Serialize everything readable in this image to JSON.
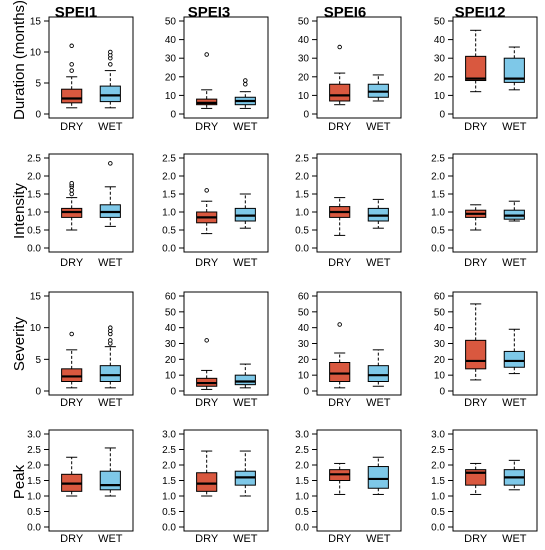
{
  "colors": {
    "dry": "#d9583f",
    "wet": "#7ec8e8",
    "axis": "#000000"
  },
  "figure": {
    "column_titles": [
      "SPEI1",
      "SPEI3",
      "SPEI6",
      "SPEI12"
    ],
    "row_labels": [
      "Duration (months)",
      "Intensity",
      "Severity",
      "Peak"
    ]
  },
  "chart_data": [
    {
      "type": "boxplot",
      "title": "SPEI1",
      "ylabel": "Duration (months)",
      "ylim": [
        0,
        15
      ],
      "yticks": [
        0,
        5,
        10,
        15
      ],
      "categories": [
        "DRY",
        "WET"
      ],
      "boxes": [
        {
          "name": "DRY",
          "whisker_low": 1,
          "q1": 1.8,
          "median": 2.5,
          "q3": 4,
          "whisker_high": 6,
          "outliers": [
            7,
            8,
            11
          ]
        },
        {
          "name": "WET",
          "whisker_low": 1,
          "q1": 2,
          "median": 3,
          "q3": 4.5,
          "whisker_high": 7,
          "outliers": [
            8,
            9,
            9.5,
            10
          ]
        }
      ]
    },
    {
      "type": "boxplot",
      "title": "SPEI3",
      "ylabel": "",
      "ylim": [
        0,
        50
      ],
      "yticks": [
        0,
        10,
        20,
        30,
        40,
        50
      ],
      "categories": [
        "DRY",
        "WET"
      ],
      "boxes": [
        {
          "name": "DRY",
          "whisker_low": 3,
          "q1": 5,
          "median": 6,
          "q3": 8,
          "whisker_high": 13,
          "outliers": [
            32
          ]
        },
        {
          "name": "WET",
          "whisker_low": 3,
          "q1": 5,
          "median": 7,
          "q3": 9,
          "whisker_high": 12,
          "outliers": [
            16,
            18
          ]
        }
      ]
    },
    {
      "type": "boxplot",
      "title": "SPEI6",
      "ylabel": "",
      "ylim": [
        0,
        50
      ],
      "yticks": [
        0,
        10,
        20,
        30,
        40,
        50
      ],
      "categories": [
        "DRY",
        "WET"
      ],
      "boxes": [
        {
          "name": "DRY",
          "whisker_low": 5,
          "q1": 7,
          "median": 10,
          "q3": 16,
          "whisker_high": 22,
          "outliers": [
            36
          ]
        },
        {
          "name": "WET",
          "whisker_low": 7,
          "q1": 9,
          "median": 12,
          "q3": 16,
          "whisker_high": 21,
          "outliers": []
        }
      ]
    },
    {
      "type": "boxplot",
      "title": "SPEI12",
      "ylabel": "",
      "ylim": [
        0,
        50
      ],
      "yticks": [
        0,
        10,
        20,
        30,
        40,
        50
      ],
      "categories": [
        "DRY",
        "WET"
      ],
      "boxes": [
        {
          "name": "DRY",
          "whisker_low": 12,
          "q1": 18,
          "median": 19,
          "q3": 31,
          "whisker_high": 45,
          "outliers": []
        },
        {
          "name": "WET",
          "whisker_low": 13,
          "q1": 17,
          "median": 19,
          "q3": 30,
          "whisker_high": 36,
          "outliers": []
        }
      ]
    },
    {
      "type": "boxplot",
      "title": "",
      "ylabel": "Intensity",
      "ylim": [
        0,
        2.5
      ],
      "yticks": [
        0.0,
        0.5,
        1.0,
        1.5,
        2.0,
        2.5
      ],
      "categories": [
        "DRY",
        "WET"
      ],
      "boxes": [
        {
          "name": "DRY",
          "whisker_low": 0.5,
          "q1": 0.85,
          "median": 1.0,
          "q3": 1.1,
          "whisker_high": 1.4,
          "outliers": [
            1.5,
            1.6,
            1.7,
            1.75,
            1.8
          ]
        },
        {
          "name": "WET",
          "whisker_low": 0.6,
          "q1": 0.85,
          "median": 1.0,
          "q3": 1.2,
          "whisker_high": 1.7,
          "outliers": [
            2.35
          ]
        }
      ]
    },
    {
      "type": "boxplot",
      "title": "",
      "ylabel": "",
      "ylim": [
        0,
        2.5
      ],
      "yticks": [
        0.0,
        0.5,
        1.0,
        1.5,
        2.0,
        2.5
      ],
      "categories": [
        "DRY",
        "WET"
      ],
      "boxes": [
        {
          "name": "DRY",
          "whisker_low": 0.4,
          "q1": 0.7,
          "median": 0.85,
          "q3": 1.0,
          "whisker_high": 1.3,
          "outliers": [
            1.6
          ]
        },
        {
          "name": "WET",
          "whisker_low": 0.55,
          "q1": 0.75,
          "median": 0.9,
          "q3": 1.1,
          "whisker_high": 1.5,
          "outliers": []
        }
      ]
    },
    {
      "type": "boxplot",
      "title": "",
      "ylabel": "",
      "ylim": [
        0,
        2.5
      ],
      "yticks": [
        0.0,
        0.5,
        1.0,
        1.5,
        2.0,
        2.5
      ],
      "categories": [
        "DRY",
        "WET"
      ],
      "boxes": [
        {
          "name": "DRY",
          "whisker_low": 0.35,
          "q1": 0.85,
          "median": 1.0,
          "q3": 1.15,
          "whisker_high": 1.4,
          "outliers": []
        },
        {
          "name": "WET",
          "whisker_low": 0.55,
          "q1": 0.75,
          "median": 0.9,
          "q3": 1.1,
          "whisker_high": 1.35,
          "outliers": []
        }
      ]
    },
    {
      "type": "boxplot",
      "title": "",
      "ylabel": "",
      "ylim": [
        0,
        2.5
      ],
      "yticks": [
        0.0,
        0.5,
        1.0,
        1.5,
        2.0,
        2.5
      ],
      "categories": [
        "DRY",
        "WET"
      ],
      "boxes": [
        {
          "name": "DRY",
          "whisker_low": 0.5,
          "q1": 0.85,
          "median": 0.95,
          "q3": 1.05,
          "whisker_high": 1.2,
          "outliers": []
        },
        {
          "name": "WET",
          "whisker_low": 0.75,
          "q1": 0.8,
          "median": 0.9,
          "q3": 1.05,
          "whisker_high": 1.3,
          "outliers": []
        }
      ]
    },
    {
      "type": "boxplot",
      "title": "",
      "ylabel": "Severity",
      "ylim": [
        0,
        15
      ],
      "yticks": [
        0,
        5,
        10,
        15
      ],
      "categories": [
        "DRY",
        "WET"
      ],
      "boxes": [
        {
          "name": "DRY",
          "whisker_low": 0.5,
          "q1": 1.5,
          "median": 2.3,
          "q3": 3.5,
          "whisker_high": 6.5,
          "outliers": [
            9
          ]
        },
        {
          "name": "WET",
          "whisker_low": 0.5,
          "q1": 1.5,
          "median": 2.5,
          "q3": 4,
          "whisker_high": 7,
          "outliers": [
            7.5,
            8,
            9,
            9.5,
            10
          ]
        }
      ]
    },
    {
      "type": "boxplot",
      "title": "",
      "ylabel": "",
      "ylim": [
        0,
        60
      ],
      "yticks": [
        0,
        10,
        20,
        30,
        40,
        50,
        60
      ],
      "categories": [
        "DRY",
        "WET"
      ],
      "boxes": [
        {
          "name": "DRY",
          "whisker_low": 1,
          "q1": 3,
          "median": 5,
          "q3": 8,
          "whisker_high": 13,
          "outliers": [
            32
          ]
        },
        {
          "name": "WET",
          "whisker_low": 2,
          "q1": 4,
          "median": 6,
          "q3": 10,
          "whisker_high": 17,
          "outliers": []
        }
      ]
    },
    {
      "type": "boxplot",
      "title": "",
      "ylabel": "",
      "ylim": [
        0,
        60
      ],
      "yticks": [
        0,
        10,
        20,
        30,
        40,
        50,
        60
      ],
      "categories": [
        "DRY",
        "WET"
      ],
      "boxes": [
        {
          "name": "DRY",
          "whisker_low": 2,
          "q1": 6,
          "median": 11,
          "q3": 18,
          "whisker_high": 24,
          "outliers": [
            42
          ]
        },
        {
          "name": "WET",
          "whisker_low": 3,
          "q1": 6,
          "median": 10,
          "q3": 16,
          "whisker_high": 26,
          "outliers": []
        }
      ]
    },
    {
      "type": "boxplot",
      "title": "",
      "ylabel": "",
      "ylim": [
        0,
        60
      ],
      "yticks": [
        0,
        10,
        20,
        30,
        40,
        50,
        60
      ],
      "categories": [
        "DRY",
        "WET"
      ],
      "boxes": [
        {
          "name": "DRY",
          "whisker_low": 7,
          "q1": 14,
          "median": 19,
          "q3": 32,
          "whisker_high": 55,
          "outliers": []
        },
        {
          "name": "WET",
          "whisker_low": 11,
          "q1": 15,
          "median": 19,
          "q3": 25,
          "whisker_high": 39,
          "outliers": []
        }
      ]
    },
    {
      "type": "boxplot",
      "title": "",
      "ylabel": "Peak",
      "ylim": [
        0,
        3.0
      ],
      "yticks": [
        0.0,
        0.5,
        1.0,
        1.5,
        2.0,
        2.5,
        3.0
      ],
      "categories": [
        "DRY",
        "WET"
      ],
      "boxes": [
        {
          "name": "DRY",
          "whisker_low": 1.0,
          "q1": 1.15,
          "median": 1.4,
          "q3": 1.7,
          "whisker_high": 2.25,
          "outliers": []
        },
        {
          "name": "WET",
          "whisker_low": 1.0,
          "q1": 1.2,
          "median": 1.35,
          "q3": 1.8,
          "whisker_high": 2.55,
          "outliers": []
        }
      ]
    },
    {
      "type": "boxplot",
      "title": "",
      "ylabel": "",
      "ylim": [
        0,
        3.0
      ],
      "yticks": [
        0.0,
        0.5,
        1.0,
        1.5,
        2.0,
        2.5,
        3.0
      ],
      "categories": [
        "DRY",
        "WET"
      ],
      "boxes": [
        {
          "name": "DRY",
          "whisker_low": 1.0,
          "q1": 1.15,
          "median": 1.4,
          "q3": 1.75,
          "whisker_high": 2.45,
          "outliers": []
        },
        {
          "name": "WET",
          "whisker_low": 1.0,
          "q1": 1.35,
          "median": 1.6,
          "q3": 1.8,
          "whisker_high": 2.45,
          "outliers": []
        }
      ]
    },
    {
      "type": "boxplot",
      "title": "",
      "ylabel": "",
      "ylim": [
        0,
        3.0
      ],
      "yticks": [
        0.0,
        0.5,
        1.0,
        1.5,
        2.0,
        2.5,
        3.0
      ],
      "categories": [
        "DRY",
        "WET"
      ],
      "boxes": [
        {
          "name": "DRY",
          "whisker_low": 1.05,
          "q1": 1.5,
          "median": 1.7,
          "q3": 1.85,
          "whisker_high": 2.05,
          "outliers": []
        },
        {
          "name": "WET",
          "whisker_low": 1.05,
          "q1": 1.25,
          "median": 1.55,
          "q3": 1.95,
          "whisker_high": 2.25,
          "outliers": []
        }
      ]
    },
    {
      "type": "boxplot",
      "title": "",
      "ylabel": "",
      "ylim": [
        0,
        3.0
      ],
      "yticks": [
        0.0,
        0.5,
        1.0,
        1.5,
        2.0,
        2.5,
        3.0
      ],
      "categories": [
        "DRY",
        "WET"
      ],
      "boxes": [
        {
          "name": "DRY",
          "whisker_low": 1.05,
          "q1": 1.35,
          "median": 1.75,
          "q3": 1.85,
          "whisker_high": 2.05,
          "outliers": []
        },
        {
          "name": "WET",
          "whisker_low": 1.2,
          "q1": 1.35,
          "median": 1.6,
          "q3": 1.85,
          "whisker_high": 2.15,
          "outliers": []
        }
      ]
    }
  ]
}
